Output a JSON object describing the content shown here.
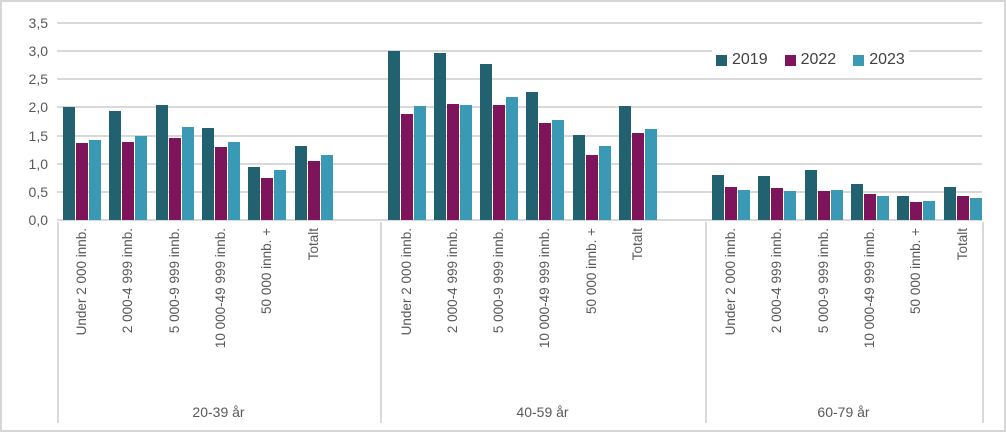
{
  "chart_data": {
    "type": "bar",
    "title": "",
    "grid": true,
    "legend_position": "top-right",
    "decimal_separator": ",",
    "y_axis": {
      "min": 0,
      "max": 3.5,
      "step": 0.5,
      "ticks": [
        "3,5",
        "3,0",
        "2,5",
        "2,0",
        "1,5",
        "1,0",
        "0,5",
        "0,0"
      ]
    },
    "categories": [
      "Under 2 000 innb.",
      "2 000-4 999 innb.",
      "5 000-9 999 innb.",
      "10 000-49 999 innb.",
      "50 000 innb. +",
      "Totalt"
    ],
    "legend": [
      {
        "label": "2019",
        "color": "#226170"
      },
      {
        "label": "2022",
        "color": "#7D145C"
      },
      {
        "label": "2023",
        "color": "#3A99B5"
      }
    ],
    "groups": [
      {
        "label": "20-39 år",
        "series": [
          {
            "name": "2019",
            "values": [
              2.0,
              1.93,
              2.05,
              1.63,
              0.94,
              1.32
            ]
          },
          {
            "name": "2022",
            "values": [
              1.36,
              1.39,
              1.45,
              1.3,
              0.75,
              1.05
            ]
          },
          {
            "name": "2023",
            "values": [
              1.43,
              1.5,
              1.66,
              1.39,
              0.88,
              1.15
            ]
          }
        ]
      },
      {
        "label": "40-59 år",
        "series": [
          {
            "name": "2019",
            "values": [
              3.0,
              2.97,
              2.78,
              2.27,
              1.51,
              2.02
            ]
          },
          {
            "name": "2022",
            "values": [
              1.88,
              2.07,
              2.04,
              1.73,
              1.16,
              1.54
            ]
          },
          {
            "name": "2023",
            "values": [
              2.03,
              2.05,
              2.18,
              1.77,
              1.31,
              1.62
            ]
          }
        ]
      },
      {
        "label": "60-79 år",
        "series": [
          {
            "name": "2019",
            "values": [
              0.8,
              0.78,
              0.88,
              0.64,
              0.42,
              0.58
            ]
          },
          {
            "name": "2022",
            "values": [
              0.58,
              0.56,
              0.52,
              0.46,
              0.32,
              0.42
            ]
          },
          {
            "name": "2023",
            "values": [
              0.53,
              0.51,
              0.54,
              0.42,
              0.33,
              0.4
            ]
          }
        ]
      }
    ],
    "colors": {
      "gridline": "#d9d9d9",
      "axis_text": "#595959",
      "legend_text": "#404040",
      "frame": "#d6d6d6"
    }
  }
}
